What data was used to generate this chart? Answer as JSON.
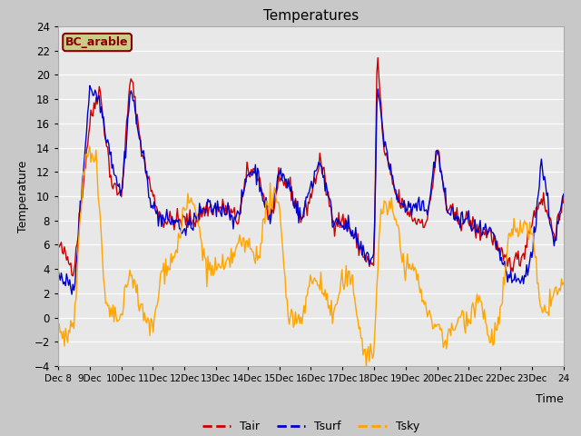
{
  "title": "Temperatures",
  "xlabel": "Time",
  "ylabel": "Temperature",
  "ylim": [
    -4,
    24
  ],
  "yticks": [
    -4,
    -2,
    0,
    2,
    4,
    6,
    8,
    10,
    12,
    14,
    16,
    18,
    20,
    22,
    24
  ],
  "xtick_labels": [
    "Dec 8",
    "9Dec",
    "10Dec",
    "11Dec",
    "12Dec",
    "13Dec",
    "14Dec",
    "15Dec",
    "16Dec",
    "17Dec",
    "18Dec",
    "19Dec",
    "20Dec",
    "21Dec",
    "22Dec",
    "23Dec",
    "24"
  ],
  "tair_color": "#cc0000",
  "tsurf_color": "#0000cc",
  "tsky_color": "#ffa500",
  "plot_bg_color": "#e8e8e8",
  "fig_bg_color": "#c8c8c8",
  "label_box_text": "BC_arable",
  "label_box_bg": "#cccc88",
  "label_box_border": "#880000",
  "legend_labels": [
    "Tair",
    "Tsurf",
    "Tsky"
  ],
  "figsize": [
    6.4,
    4.8
  ],
  "dpi": 100
}
